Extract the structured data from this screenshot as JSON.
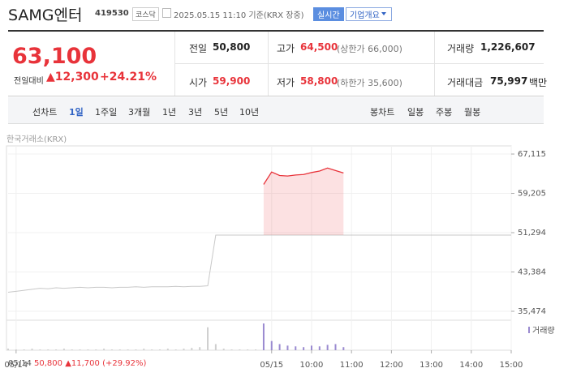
{
  "header": {
    "name": "SAMG엔터",
    "code": "419530",
    "market": "코스닥",
    "datetime": "2025.05.15 11:10 기준(KRX 장중)",
    "realtime": "실시간",
    "company": "기업개요"
  },
  "price": {
    "current": "63,100",
    "change_label": "전일대비",
    "change": "▲12,300",
    "rate": "+24.21%"
  },
  "stats": [
    {
      "label": "전일",
      "value": "50,800"
    },
    {
      "label": "고가",
      "value": "64,500",
      "extra": "(상한가 66,000)"
    },
    {
      "label": "거래량",
      "value": "1,226,607"
    },
    {
      "label": "시가",
      "value": "59,900"
    },
    {
      "label": "저가",
      "value": "58,800",
      "extra": "(하한가 35,600)"
    },
    {
      "label": "거래대금",
      "value": "75,997",
      "unit": "백만"
    }
  ],
  "tabs": {
    "line_label": "선차트",
    "line": [
      "1일",
      "1주일",
      "3개월",
      "1년",
      "3년",
      "5년",
      "10년"
    ],
    "candle_label": "봉차트",
    "candle": [
      "일봉",
      "주봉",
      "월봉"
    ]
  },
  "chart_data": {
    "type": "line",
    "source": "한국거래소(KRX)",
    "volume_label": "거래량",
    "categories": [
      null,
      "05/14",
      null,
      null,
      null,
      null,
      null,
      null,
      null,
      null,
      null,
      null,
      null,
      null,
      null,
      null,
      null,
      null,
      null,
      null,
      null,
      null,
      null,
      null,
      null,
      null,
      null,
      null,
      null,
      null,
      null,
      null,
      null,
      "05/15",
      null,
      null,
      null,
      null,
      "10:00",
      null,
      null,
      null,
      null,
      "11:00",
      null,
      null,
      null,
      null,
      "12:00",
      null,
      null,
      null,
      null,
      "13:00",
      null,
      null,
      null,
      null,
      "14:00",
      null,
      null,
      null,
      null,
      "15:00"
    ],
    "series": [
      {
        "color": "#c8c8c8",
        "values": [
          39300,
          39500,
          39700,
          39900,
          40100,
          40000,
          40200,
          40100,
          40200,
          40300,
          40200,
          40300,
          40300,
          40200,
          40300,
          40300,
          40400,
          40300,
          40400,
          40400,
          40400,
          40500,
          40400,
          40500,
          40500,
          40600,
          50800,
          50800,
          50800,
          50800,
          50800,
          50800,
          50800,
          50800,
          50800,
          50800,
          50800,
          50800,
          50800,
          50800,
          50800,
          50800,
          50800,
          50800,
          50800,
          50800,
          50800,
          50800,
          50800,
          50800,
          50800,
          50800,
          50800,
          50800,
          50800,
          50800,
          50800,
          50800,
          50800,
          50800,
          50800,
          50800,
          50800,
          50800
        ]
      },
      {
        "color": "#e8333a",
        "values": [
          null,
          null,
          null,
          null,
          null,
          null,
          null,
          null,
          null,
          null,
          null,
          null,
          null,
          null,
          null,
          null,
          null,
          null,
          null,
          null,
          null,
          null,
          null,
          null,
          null,
          null,
          null,
          null,
          null,
          null,
          null,
          null,
          61000,
          63500,
          62800,
          62700,
          62900,
          63000,
          63400,
          63700,
          64300,
          63800,
          63300,
          null,
          null,
          null,
          null,
          null,
          null,
          null,
          null,
          null,
          null,
          null,
          null,
          null,
          null,
          null,
          null,
          null,
          null,
          null,
          null,
          null
        ]
      }
    ],
    "volume": [
      2,
      1,
      1,
      2,
      1,
      1,
      1,
      2,
      1,
      1,
      1,
      1,
      2,
      1,
      1,
      1,
      1,
      2,
      1,
      1,
      2,
      1,
      2,
      3,
      4,
      30,
      8,
      2,
      1,
      1,
      1,
      1,
      35,
      12,
      8,
      6,
      5,
      4,
      6,
      5,
      7,
      8,
      4,
      null,
      null,
      null,
      null,
      null,
      null,
      null,
      null,
      null,
      null,
      null,
      null,
      null,
      null,
      null,
      null,
      null,
      null,
      null,
      null,
      null
    ],
    "ylim": [
      33680,
      68750
    ],
    "yticks": [
      {
        "value": 35474,
        "label": "35,474"
      },
      {
        "value": 43384,
        "label": "43,384"
      },
      {
        "value": 51294,
        "label": "51,294"
      },
      {
        "value": 59205,
        "label": "59,205"
      },
      {
        "value": 67115,
        "label": "67,115"
      }
    ],
    "grid": true,
    "footer": {
      "date": "05/14",
      "close": "50,800",
      "change": "▲11,700",
      "rate": "(+29.92%)"
    }
  }
}
